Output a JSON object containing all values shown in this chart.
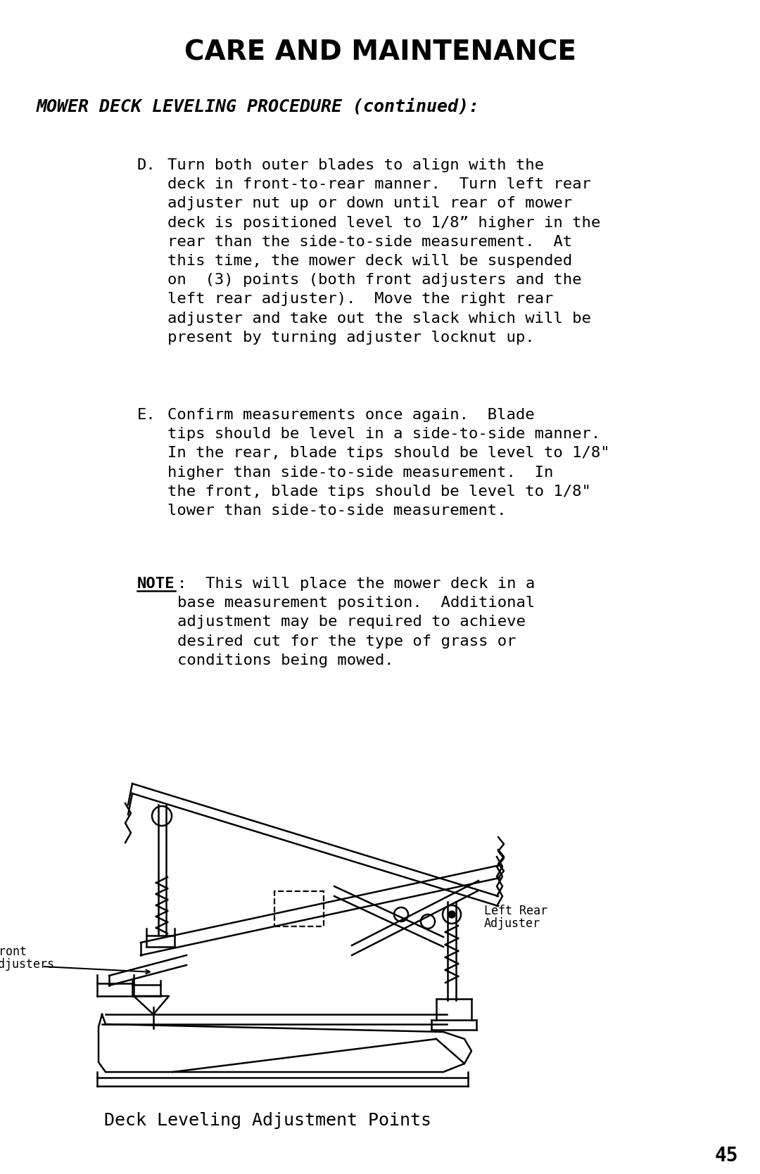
{
  "title": "CARE AND MAINTENANCE",
  "subtitle": "MOWER DECK LEVELING PROCEDURE (continued):",
  "section_D_label": "D.",
  "section_D_text": "Turn both outer blades to align with the\ndeck in front-to-rear manner.  Turn left rear\nadjuster nut up or down until rear of mower\ndeck is positioned level to 1/8” higher in the\nrear than the side-to-side measurement.  At\nthis time, the mower deck will be suspended\non  (3) points (both front adjusters and the\nleft rear adjuster).  Move the right rear\nadjuster and take out the slack which will be\npresent by turning adjuster locknut up.",
  "section_E_label": "E.",
  "section_E_text": "Confirm measurements once again.  Blade\ntips should be level in a side-to-side manner.\nIn the rear, blade tips should be level to 1/8\"\nhigher than side-to-side measurement.  In\nthe front, blade tips should be level to 1/8\"\nlower than side-to-side measurement.",
  "note_bold": "NOTE",
  "note_rest": ":  This will place the mower deck in a\nbase measurement position.  Additional\nadjustment may be required to achieve\ndesired cut for the type of grass or\nconditions being mowed.",
  "caption": "Deck Leveling Adjustment Points",
  "label_front_line1": "Front",
  "label_front_line2": "Adjusters",
  "label_rear_line1": "Left Rear",
  "label_rear_line2": "Adjuster",
  "page_number": "45",
  "bg_color": "#ffffff",
  "text_color": "#000000",
  "line_color": "#000000"
}
